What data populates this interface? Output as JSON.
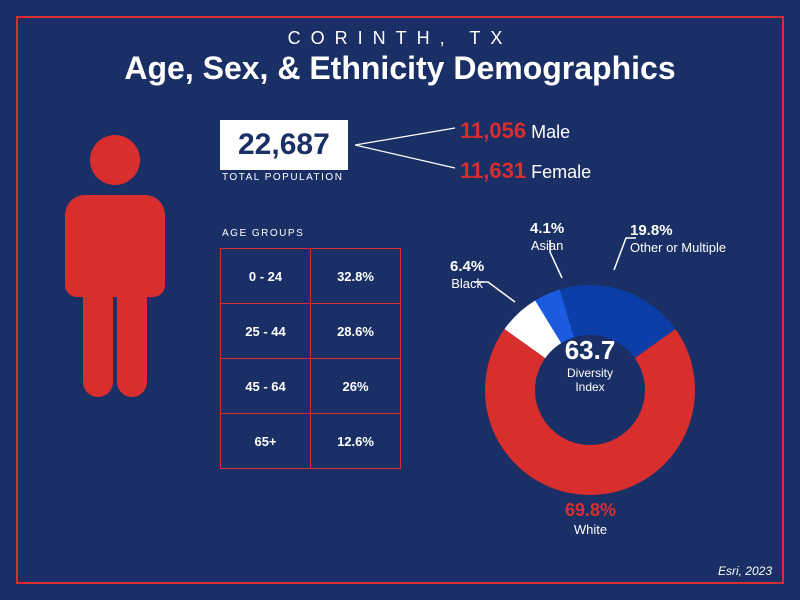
{
  "header": {
    "location": "CORINTH, TX",
    "title": "Age, Sex, & Ethnicity Demographics"
  },
  "population": {
    "total": "22,687",
    "total_label": "TOTAL POPULATION",
    "male_count": "11,056",
    "male_label": "Male",
    "female_count": "11,631",
    "female_label": "Female"
  },
  "age_groups": {
    "label": "AGE GROUPS",
    "rows": [
      {
        "range": "0 - 24",
        "pct": "32.8%"
      },
      {
        "range": "25 - 44",
        "pct": "28.6%"
      },
      {
        "range": "45 - 64",
        "pct": "26%"
      },
      {
        "range": "65+",
        "pct": "12.6%"
      }
    ]
  },
  "diversity": {
    "index_value": "63.7",
    "index_label": "Diversity\nIndex"
  },
  "ethnicity": {
    "type": "donut",
    "slices": [
      {
        "name": "White",
        "pct": 69.8,
        "label_pct": "69.8%",
        "label_name": "White",
        "color": "#d92e2e"
      },
      {
        "name": "Black",
        "pct": 6.4,
        "label_pct": "6.4%",
        "label_name": "Black",
        "color": "#ffffff"
      },
      {
        "name": "Asian",
        "pct": 4.1,
        "label_pct": "4.1%",
        "label_name": "Asian",
        "color": "#1a5be0"
      },
      {
        "name": "Other or Multiple",
        "pct": 19.8,
        "label_pct": "19.8%",
        "label_name": "Other or Multiple",
        "color": "#0b3ea6"
      }
    ],
    "thickness": 50,
    "background_color": "#1a2f66"
  },
  "colors": {
    "background": "#1a2f66",
    "accent_red": "#d92e2e",
    "text": "#ffffff"
  },
  "credit": "Esri, 2023"
}
